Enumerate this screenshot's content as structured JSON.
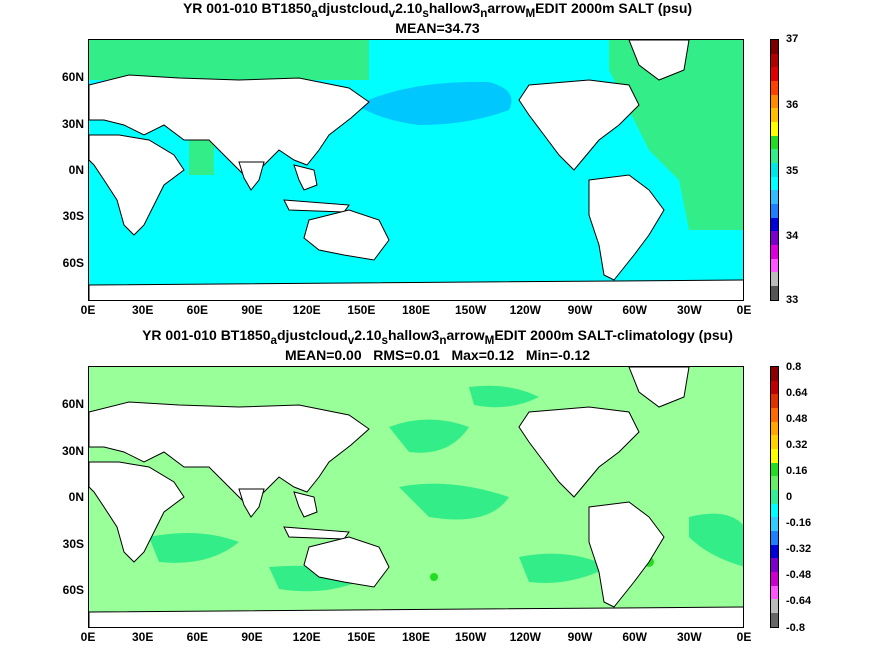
{
  "panels": [
    {
      "title_line1": "YR 001-010 BT1850",
      "title_sub1": "a",
      "title_mid1": "djustcloud",
      "title_sub2": "v",
      "title_mid2": "2.10",
      "title_sub3": "s",
      "title_mid3": "hallow3",
      "title_sub4": "n",
      "title_mid4": "arrow",
      "title_sub5": "M",
      "title_end": "EDIT 2000m SALT (psu)",
      "stats": "MEAN=34.73",
      "lat_labels": [
        "60N",
        "30N",
        "0N",
        "30S",
        "60S"
      ],
      "lon_labels": [
        "0E",
        "30E",
        "60E",
        "90E",
        "120E",
        "150E",
        "180E",
        "150W",
        "120W",
        "90W",
        "60W",
        "30W",
        "0E"
      ],
      "colorbar": {
        "labels": [
          "37",
          "36",
          "35",
          "34",
          "33"
        ],
        "colors": [
          "#7a0000",
          "#b00000",
          "#e00000",
          "#ff4000",
          "#ff8c00",
          "#ffc000",
          "#ffff00",
          "#22dd22",
          "#33ee88",
          "#00e5e5",
          "#00ffff",
          "#33bbff",
          "#1f7fff",
          "#0000dd",
          "#7a00cc",
          "#dd00dd",
          "#ff55ff",
          "#bbbbbb",
          "#555555"
        ]
      }
    },
    {
      "title_line1": "YR 001-010 BT1850",
      "title_sub1": "a",
      "title_mid1": "djustcloud",
      "title_sub2": "v",
      "title_mid2": "2.10",
      "title_sub3": "s",
      "title_mid3": "hallow3",
      "title_sub4": "n",
      "title_mid4": "arrow",
      "title_sub5": "M",
      "title_end": "EDIT 2000m SALT-climatology (psu)",
      "stats": "MEAN=0.00   RMS=0.01   Max=0.12   Min=-0.12",
      "lat_labels": [
        "60N",
        "30N",
        "0N",
        "30S",
        "60S"
      ],
      "lon_labels": [
        "0E",
        "30E",
        "60E",
        "90E",
        "120E",
        "150E",
        "180E",
        "150W",
        "120W",
        "90W",
        "60W",
        "30W",
        "0E"
      ],
      "colorbar": {
        "labels": [
          "0.8",
          "0.64",
          "0.48",
          "0.32",
          "0.16",
          "0",
          "-0.16",
          "-0.32",
          "-0.48",
          "-0.64",
          "-0.8"
        ],
        "colors": [
          "#8b0000",
          "#c00000",
          "#e03000",
          "#ff6a00",
          "#ffa500",
          "#ffd200",
          "#ffff00",
          "#22dd22",
          "#66ee66",
          "#33ee99",
          "#00ffff",
          "#33ccff",
          "#1f7fff",
          "#0000dd",
          "#7a00cc",
          "#cc00cc",
          "#ff55ff",
          "#bbbbbb",
          "#666666"
        ]
      }
    }
  ],
  "colors": {
    "ocean_top_main": "#00ffff",
    "ocean_top_pacific_north": "#00c8ff",
    "ocean_top_atlantic": "#33ee88",
    "ocean_bottom_main": "#99ff99",
    "ocean_bottom_patch": "#33ee88",
    "ocean_bottom_cyan": "#00ffff",
    "land": "#ffffff",
    "coast": "#000000"
  }
}
